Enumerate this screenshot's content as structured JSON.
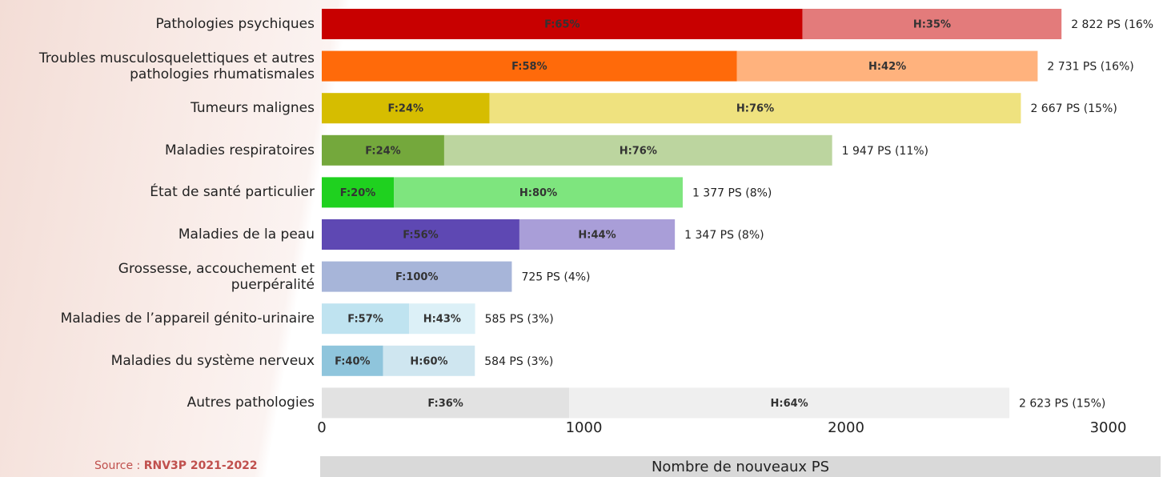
{
  "chart_data": {
    "type": "stacked-barh",
    "categories": [
      "Pathologies psychiques",
      "Troubles musculosquelettiques et autres pathologies rhumatismales",
      "Tumeurs malignes",
      "Maladies respiratoires",
      "État de santé particulier",
      "Maladies de la peau",
      "Grossesse, accouchement et puerpéralité",
      "Maladies de l’appareil génito-urinaire",
      "Maladies du système nerveux",
      "Autres pathologies"
    ],
    "series": [
      {
        "values": [
          1834,
          1584,
          640,
          467,
          275,
          754,
          725,
          333,
          234,
          944
        ],
        "value_labels": [
          "F:65%",
          "F:58%",
          "F:24%",
          "F:24%",
          "F:20%",
          "F:56%",
          "F:100%",
          "F:57%",
          "F:40%",
          "F:36%"
        ],
        "colors": [
          "#c80000",
          "#ff6a0a",
          "#d6bd00",
          "#74a83c",
          "#1fd11f",
          "#5e48b3",
          "#a7b5d9",
          "#bfe3f0",
          "#8fc5dc",
          "#e2e2e2"
        ]
      },
      {
        "values": [
          988,
          1147,
          2027,
          1480,
          1102,
          593,
          null,
          252,
          350,
          1679
        ],
        "value_labels": [
          "H:35%",
          "H:42%",
          "H:76%",
          "H:76%",
          "H:80%",
          "H:44%",
          null,
          "H:43%",
          "H:60%",
          "H:64%"
        ],
        "colors": [
          "#e37b7b",
          "#ffb27d",
          "#efe27f",
          "#bcd59f",
          "#7ee57e",
          "#a99ed8",
          null,
          "#dcf0f7",
          "#cfe6f0",
          "#efefef"
        ]
      }
    ],
    "total_labels": [
      "2 822 PS (16%",
      "2 731 PS (16%)",
      "2 667 PS (15%)",
      "1 947 PS (11%)",
      "1 377 PS (8%)",
      "1 347 PS (8%)",
      "725 PS (4%)",
      "585 PS (3%)",
      "584 PS (3%)",
      "2 623 PS (15%)"
    ],
    "xlim": [
      0,
      3200
    ],
    "xticks": [
      0,
      1000,
      2000,
      3000
    ],
    "grid": false,
    "xlabel": "Nombre de nouveaux PS",
    "source_prefix": "Source :",
    "source": "RNV3P 2021-2022"
  }
}
